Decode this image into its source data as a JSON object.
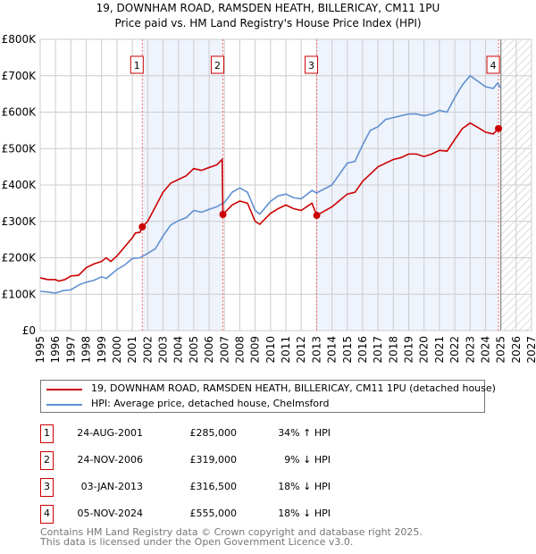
{
  "chart_data": {
    "type": "line",
    "title": "19, DOWNHAM ROAD, RAMSDEN HEATH, BILLERICAY, CM11 1PU",
    "subtitle": "Price paid vs. HM Land Registry's House Price Index (HPI)",
    "xlim": [
      1995,
      2027
    ],
    "ylim": [
      0,
      800000
    ],
    "x_ticks": [
      "1995",
      "1996",
      "1997",
      "1998",
      "1999",
      "2000",
      "2001",
      "2002",
      "2003",
      "2004",
      "2005",
      "2006",
      "2007",
      "2008",
      "2009",
      "2010",
      "2011",
      "2012",
      "2013",
      "2014",
      "2015",
      "2016",
      "2017",
      "2018",
      "2019",
      "2020",
      "2021",
      "2022",
      "2023",
      "2024",
      "2025",
      "2026",
      "2027"
    ],
    "y_ticks": [
      {
        "v": 0,
        "label": "£0"
      },
      {
        "v": 100,
        "label": "£100K"
      },
      {
        "v": 200,
        "label": "£200K"
      },
      {
        "v": 300,
        "label": "£300K"
      },
      {
        "v": 400,
        "label": "£400K"
      },
      {
        "v": 500,
        "label": "£500K"
      },
      {
        "v": 600,
        "label": "£600K"
      },
      {
        "v": 700,
        "label": "£700K"
      },
      {
        "v": 800,
        "label": "£800K"
      }
    ],
    "y_units": "£K",
    "grid": true,
    "forecast_hatch_from": 2025,
    "colors": {
      "price": "#cc0000",
      "hpi": "#6090d0",
      "shade": "#eef3fc",
      "marker_line": "#ff6666"
    },
    "series": [
      {
        "name": "19, DOWNHAM ROAD, RAMSDEN HEATH, BILLERICAY, CM11 1PU (detached house)",
        "x": [
          1995,
          1995.5,
          1996,
          1996.2,
          1996.6,
          1997,
          1997.5,
          1998,
          1998.5,
          1999,
          1999.3,
          1999.6,
          2000,
          2000.5,
          2001,
          2001.2,
          2001.5,
          2001.65,
          2002,
          2002.5,
          2003,
          2003.5,
          2004,
          2004.5,
          2005,
          2005.5,
          2006,
          2006.5,
          2006.85,
          2006.9,
          2007.5,
          2008,
          2008.5,
          2009,
          2009.3,
          2010,
          2010.5,
          2011,
          2011.5,
          2012,
          2012.7,
          2013.01,
          2014,
          2015,
          2015.5,
          2016,
          2016.5,
          2017,
          2017.5,
          2018,
          2018.5,
          2019,
          2019.5,
          2020,
          2020.5,
          2021,
          2021.5,
          2022,
          2022.5,
          2023,
          2023.5,
          2024,
          2024.5,
          2024.85
        ],
        "values": [
          145,
          140,
          140,
          136,
          140,
          150,
          152,
          173,
          183,
          190,
          200,
          190,
          205,
          230,
          255,
          268,
          270,
          285,
          300,
          340,
          380,
          405,
          415,
          425,
          445,
          440,
          448,
          455,
          470,
          319,
          345,
          356,
          350,
          300,
          292,
          322,
          335,
          345,
          335,
          330,
          350,
          316.5,
          340,
          375,
          380,
          410,
          430,
          450,
          460,
          470,
          475,
          485,
          485,
          478,
          485,
          495,
          493,
          525,
          555,
          570,
          558,
          545,
          540,
          555
        ]
      },
      {
        "name": "HPI: Average price, detached house, Chelmsford",
        "x": [
          1995,
          1995.5,
          1996,
          1996.5,
          1997,
          1997.5,
          1998,
          1998.5,
          1999,
          1999.3,
          2000,
          2000.5,
          2001,
          2001.5,
          2002,
          2002.5,
          2003,
          2003.5,
          2004,
          2004.5,
          2005,
          2005.5,
          2006,
          2006.5,
          2007,
          2007.5,
          2008,
          2008.5,
          2009,
          2009.3,
          2010,
          2010.5,
          2011,
          2011.5,
          2012,
          2012.7,
          2013,
          2014,
          2015,
          2015.5,
          2016,
          2016.5,
          2017,
          2017.5,
          2018,
          2018.5,
          2019,
          2019.5,
          2020,
          2020.5,
          2021,
          2021.5,
          2022,
          2022.5,
          2023,
          2023.5,
          2024,
          2024.5,
          2024.8,
          2025
        ],
        "values": [
          108,
          106,
          103,
          110,
          112,
          125,
          133,
          138,
          148,
          143,
          168,
          180,
          198,
          200,
          212,
          225,
          260,
          290,
          302,
          310,
          330,
          325,
          333,
          340,
          352,
          380,
          392,
          380,
          330,
          320,
          355,
          370,
          375,
          365,
          362,
          385,
          378,
          400,
          460,
          465,
          510,
          550,
          560,
          580,
          585,
          590,
          595,
          595,
          590,
          595,
          605,
          600,
          640,
          675,
          700,
          685,
          670,
          665,
          680,
          665
        ]
      }
    ],
    "sales": [
      {
        "n": "1",
        "x": 2001.65,
        "price": 285,
        "date": "24-AUG-2001",
        "price_label": "£285,000",
        "hpi": "34% ↑ HPI"
      },
      {
        "n": "2",
        "x": 2006.9,
        "price": 319,
        "date": "24-NOV-2006",
        "price_label": "£319,000",
        "hpi": "9% ↓ HPI"
      },
      {
        "n": "3",
        "x": 2013.01,
        "price": 316.5,
        "date": "03-JAN-2013",
        "price_label": "£316,500",
        "hpi": "18% ↓ HPI"
      },
      {
        "n": "4",
        "x": 2024.85,
        "price": 555,
        "date": "05-NOV-2024",
        "price_label": "£555,000",
        "hpi": "18% ↓ HPI"
      }
    ],
    "legend": [
      "19, DOWNHAM ROAD, RAMSDEN HEATH, BILLERICAY, CM11 1PU (detached house)",
      "HPI: Average price, detached house, Chelmsford"
    ],
    "legend_position": "bottom"
  },
  "footer": [
    "Contains HM Land Registry data © Crown copyright and database right 2025.",
    "This data is licensed under the Open Government Licence v3.0."
  ]
}
